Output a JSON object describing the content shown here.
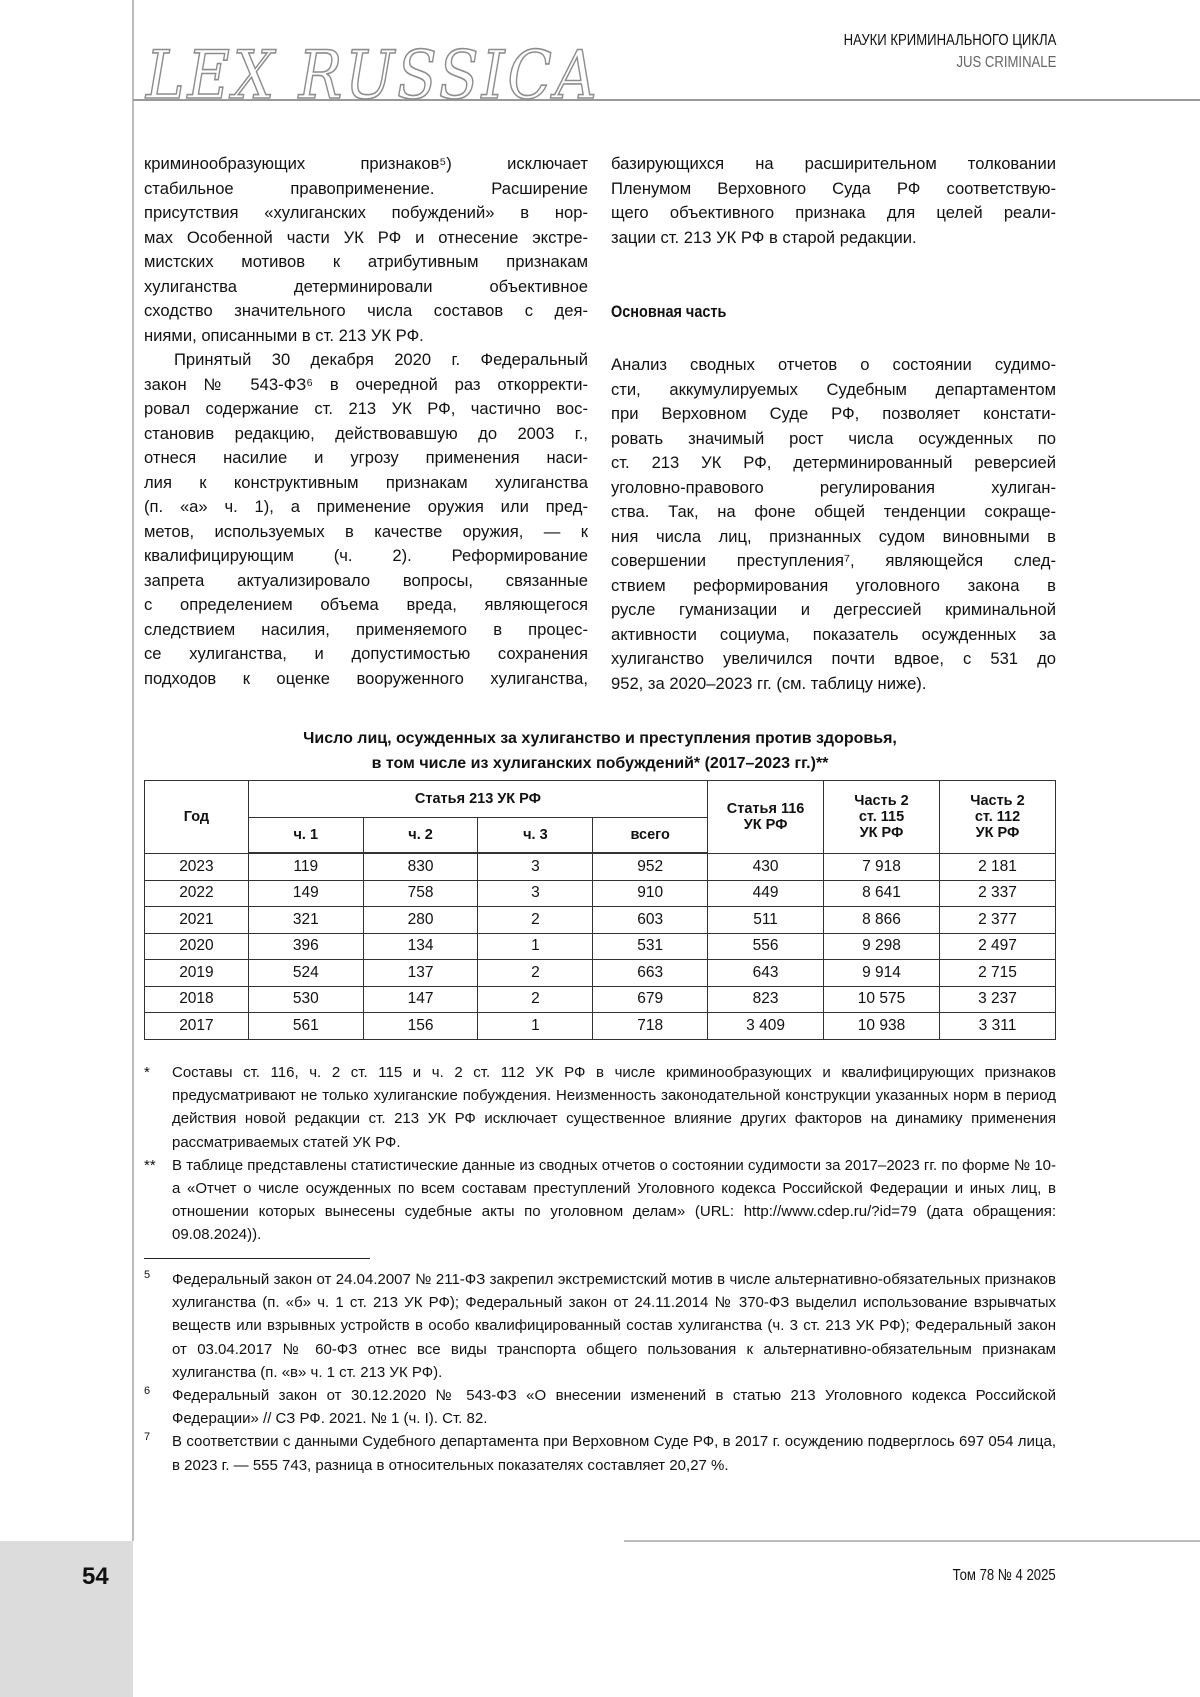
{
  "header": {
    "logo": "LEX RUSSICA",
    "section": "НАУКИ КРИМИНАЛЬНОГО ЦИКЛА",
    "section_latin": "JUS CRIMINALE"
  },
  "left_column": [
    {
      "lines": [
        "криминообразующих признаков⁵) исключает",
        "стабильное правоприменение. Расширение",
        "присутствия «хулиганских побуждений» в нор-",
        "мах Особенной части УК РФ и отнесение экстре-",
        "мистских мотивов к атрибутивным признакам",
        "хулиганства детерминировали объективное",
        "сходство значительного числа составов с дея-",
        "ниями, описанными в ст. 213 УК РФ."
      ]
    },
    {
      "indent": true,
      "continues": true,
      "lines": [
        "Принятый 30 декабря 2020 г. Федеральный",
        "закон № 543-ФЗ⁶ в очередной раз откорректи-",
        "ровал содержание ст. 213 УК РФ, частично вос-",
        "становив редакцию, действовавшую до 2003 г.,",
        "отнеся насилие и угрозу применения наси-",
        "лия к конструктивным признакам хулиганства",
        "(п. «а» ч. 1), а применение оружия или пред-",
        "метов, используемых в качестве оружия, — к",
        "квалифицирующим (ч. 2). Реформирование",
        "запрета актуализировало вопросы, связанные",
        "с определением объема вреда, являющегося",
        "следствием насилия, применяемого в процес-",
        "се хулиганства, и допустимостью сохранения",
        "подходов к оценке вооруженного хулиганства,"
      ]
    }
  ],
  "right_column_top": [
    {
      "lines": [
        "базирующихся на расширительном толковании",
        "Пленумом Верховного Суда РФ соответствую-",
        "щего объективного признака для целей реали-",
        "зации ст. 213 УК РФ в старой редакции."
      ]
    }
  ],
  "section_heading": "Основная часть",
  "right_column_main": [
    {
      "lines": [
        "Анализ сводных отчетов о состоянии судимо-",
        "сти, аккумулируемых Судебным департаментом",
        "при Верховном Суде РФ, позволяет констати-",
        "ровать значимый рост числа осужденных по",
        "ст. 213 УК РФ, детерминированный реверсией",
        "уголовно-правового регулирования хулиган-",
        "ства. Так, на фоне общей тенденции сокраще-",
        "ния числа лиц, признанных судом виновными в",
        "совершении преступления⁷, являющейся след-",
        "ствием реформирования уголовного закона в",
        "русле гуманизации и дегрессией криминальной",
        "активности социума, показатель осужденных за",
        "хулиганство увеличился почти вдвое, с 531 до",
        "952, за 2020–2023 гг. (см. таблицу ниже)."
      ]
    }
  ],
  "table": {
    "caption_line1": "Число лиц, осужденных за хулиганство и преступления против здоровья,",
    "caption_line2": "в том числе из хулиганских побуждений* (2017–2023 гг.)**",
    "headers": {
      "year": "Год",
      "art213": "Статья 213 УК РФ",
      "art213_parts": [
        "ч. 1",
        "ч. 2",
        "ч. 3",
        "всего"
      ],
      "art116": "Статья 116 УК РФ",
      "art115": "Часть 2 ст. 115 УК РФ",
      "art112": "Часть 2 ст. 112 УК РФ"
    },
    "rows": [
      [
        "2023",
        "119",
        "830",
        "3",
        "952",
        "430",
        "7 918",
        "2 181"
      ],
      [
        "2022",
        "149",
        "758",
        "3",
        "910",
        "449",
        "8 641",
        "2 337"
      ],
      [
        "2021",
        "321",
        "280",
        "2",
        "603",
        "511",
        "8 866",
        "2 377"
      ],
      [
        "2020",
        "396",
        "134",
        "1",
        "531",
        "556",
        "9 298",
        "2 497"
      ],
      [
        "2019",
        "524",
        "137",
        "2",
        "663",
        "643",
        "9 914",
        "2 715"
      ],
      [
        "2018",
        "530",
        "147",
        "2",
        "679",
        "823",
        "10 575",
        "3 237"
      ],
      [
        "2017",
        "561",
        "156",
        "1",
        "718",
        "3 409",
        "10 938",
        "3 311"
      ]
    ]
  },
  "table_notes": [
    {
      "mark": "*",
      "text": "Составы ст. 116, ч. 2 ст. 115 и ч. 2 ст. 112 УК РФ в числе криминообразующих и квалифицирующих признаков предусматривают не только хулиганские побуждения. Неизменность законодательной конструкции указанных норм в период действия новой редакции ст. 213 УК РФ исключает существенное влияние других факторов на динамику применения рассматриваемых статей УК РФ."
    },
    {
      "mark": "**",
      "text": "В таблице представлены статистические данные из сводных отчетов о состоянии судимости за 2017–2023 гг. по форме № 10-а «Отчет о числе осужденных по всем составам преступлений Уголовного кодекса Российской Федерации и иных лиц, в отношении которых вынесены судебные акты по уголовном делам» (URL: http://www.cdep.ru/?id=79 (дата обращения: 09.08.2024))."
    }
  ],
  "footnotes": [
    {
      "mark": "5",
      "text": "Федеральный закон от 24.04.2007 № 211-ФЗ закрепил экстремистский мотив в числе альтернативно-обязательных признаков хулиганства (п. «б» ч. 1 ст. 213 УК РФ); Федеральный закон от 24.11.2014 № 370-ФЗ выделил использование взрывчатых веществ или взрывных устройств в особо квалифицированный состав хулиганства (ч. 3 ст. 213 УК РФ); Федеральный закон от 03.04.2017 № 60-ФЗ отнес все виды транспорта общего пользования к альтернативно-обязательным признакам хулиганства (п. «в» ч. 1 ст. 213 УК РФ)."
    },
    {
      "mark": "6",
      "text": "Федеральный закон от 30.12.2020 № 543-ФЗ «О внесении изменений в статью 213 Уголовного кодекса Российской Федерации» // СЗ РФ. 2021. № 1 (ч. I). Ст. 82."
    },
    {
      "mark": "7",
      "text": "В соответствии с данными Судебного департамента при Верховном Суде РФ, в 2017 г. осуждению подверглось 697 054 лица, в 2023 г. — 555 743, разница в относительных показателях составляет 20,27 %."
    }
  ],
  "footer": {
    "page_number": "54",
    "issue": "Том 78 № 4 2025"
  }
}
